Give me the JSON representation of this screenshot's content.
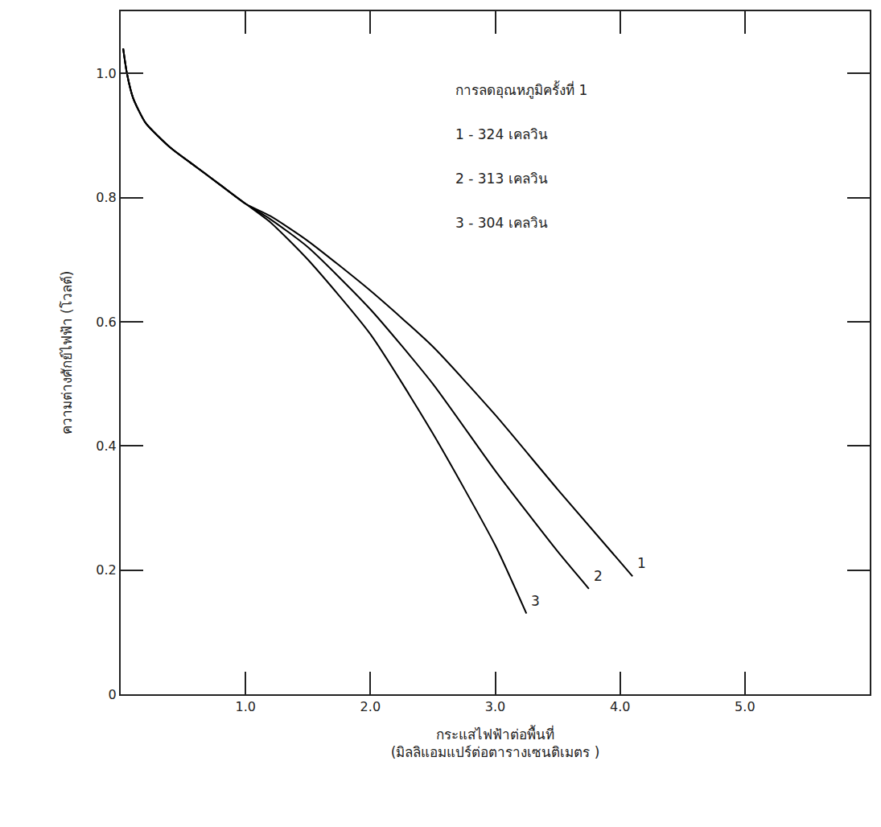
{
  "chart_data": {
    "type": "line",
    "x_label": "กระแสไฟฟ้าต่อพื้นที่\n(มิลลิแอมแปร์ต่อตารางเซนติเมตร )",
    "y_label": "ความต่างศักย์ไฟฟ้า (โวลต์)",
    "annotations": [
      "การลดอุณหภูมิครั้งที่ 1"
    ],
    "xlim": [
      0,
      6
    ],
    "xticks": [
      {
        "value": 1,
        "label": "1.0"
      },
      {
        "value": 2,
        "label": "2.0"
      },
      {
        "value": 3,
        "label": "3.0"
      },
      {
        "value": 4,
        "label": "4.0"
      },
      {
        "value": 5,
        "label": "5.0"
      }
    ],
    "ylim": [
      0,
      1.1
    ],
    "yticks": [
      0,
      0.2,
      0.4,
      0.6,
      0.8,
      {
        "value": 1,
        "label": "1.0"
      }
    ],
    "grid": false,
    "series": [
      {
        "name": "1 - 324 เคลวิน",
        "label": "1",
        "color": "#000000",
        "x": [
          0.02,
          0.05,
          0.1,
          0.2,
          0.4,
          0.6,
          0.8,
          1.0,
          1.2,
          1.5,
          2.0,
          2.5,
          3.0,
          3.5,
          4.1
        ],
        "values": [
          1.04,
          1.0,
          0.96,
          0.92,
          0.88,
          0.85,
          0.82,
          0.79,
          0.77,
          0.73,
          0.65,
          0.56,
          0.45,
          0.33,
          0.19
        ]
      },
      {
        "name": "2 - 313 เคลวิน",
        "label": "2",
        "color": "#000000",
        "x": [
          0.02,
          0.05,
          0.1,
          0.2,
          0.4,
          0.6,
          0.8,
          1.0,
          1.2,
          1.5,
          2.0,
          2.5,
          3.0,
          3.5,
          3.75
        ],
        "values": [
          1.04,
          1.0,
          0.96,
          0.92,
          0.88,
          0.85,
          0.82,
          0.79,
          0.765,
          0.72,
          0.62,
          0.5,
          0.36,
          0.23,
          0.17
        ]
      },
      {
        "name": "3 - 304 เคลวิน",
        "label": "3",
        "color": "#000000",
        "x": [
          0.02,
          0.05,
          0.1,
          0.2,
          0.4,
          0.6,
          0.8,
          1.0,
          1.2,
          1.5,
          2.0,
          2.5,
          3.0,
          3.25
        ],
        "values": [
          1.04,
          1.0,
          0.96,
          0.92,
          0.88,
          0.85,
          0.82,
          0.79,
          0.76,
          0.7,
          0.58,
          0.42,
          0.24,
          0.13
        ]
      }
    ]
  }
}
